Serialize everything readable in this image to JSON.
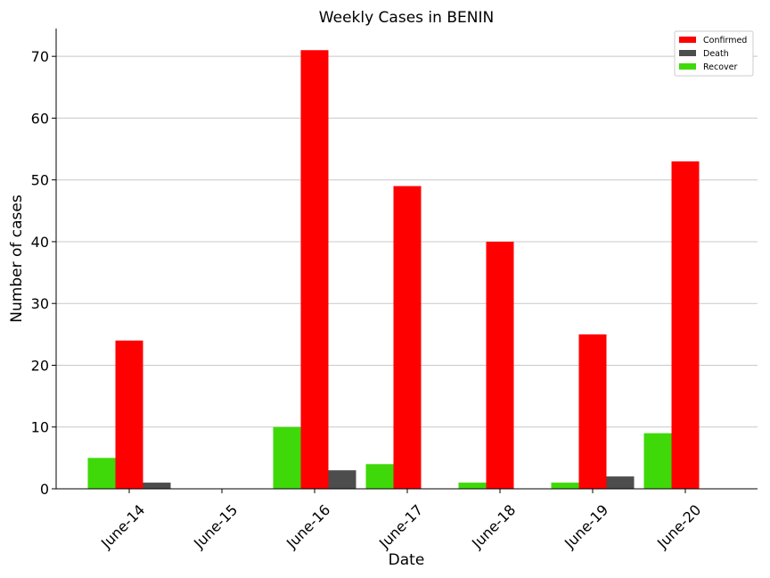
{
  "chart_data": {
    "type": "bar",
    "title": "Weekly Cases in BENIN",
    "xlabel": "Date",
    "ylabel": "Number of cases",
    "categories": [
      "June-14",
      "June-15",
      "June-16",
      "June-17",
      "June-18",
      "June-19",
      "June-20"
    ],
    "series": [
      {
        "name": "Recover",
        "color": "#3fd90a",
        "values": [
          5,
          0,
          10,
          4,
          1,
          1,
          9
        ]
      },
      {
        "name": "Confirmed",
        "color": "#ff0000",
        "values": [
          24,
          0,
          71,
          49,
          40,
          25,
          53
        ]
      },
      {
        "name": "Death",
        "color": "#4d4d4d",
        "values": [
          1,
          0,
          3,
          0,
          0,
          2,
          0
        ]
      }
    ],
    "legend_order": [
      "Confirmed",
      "Death",
      "Recover"
    ],
    "legend_position": "top-right",
    "yticks": [
      0,
      10,
      20,
      30,
      40,
      50,
      60,
      70
    ],
    "ylim": [
      0,
      74.5
    ],
    "grid": "horizontal"
  }
}
